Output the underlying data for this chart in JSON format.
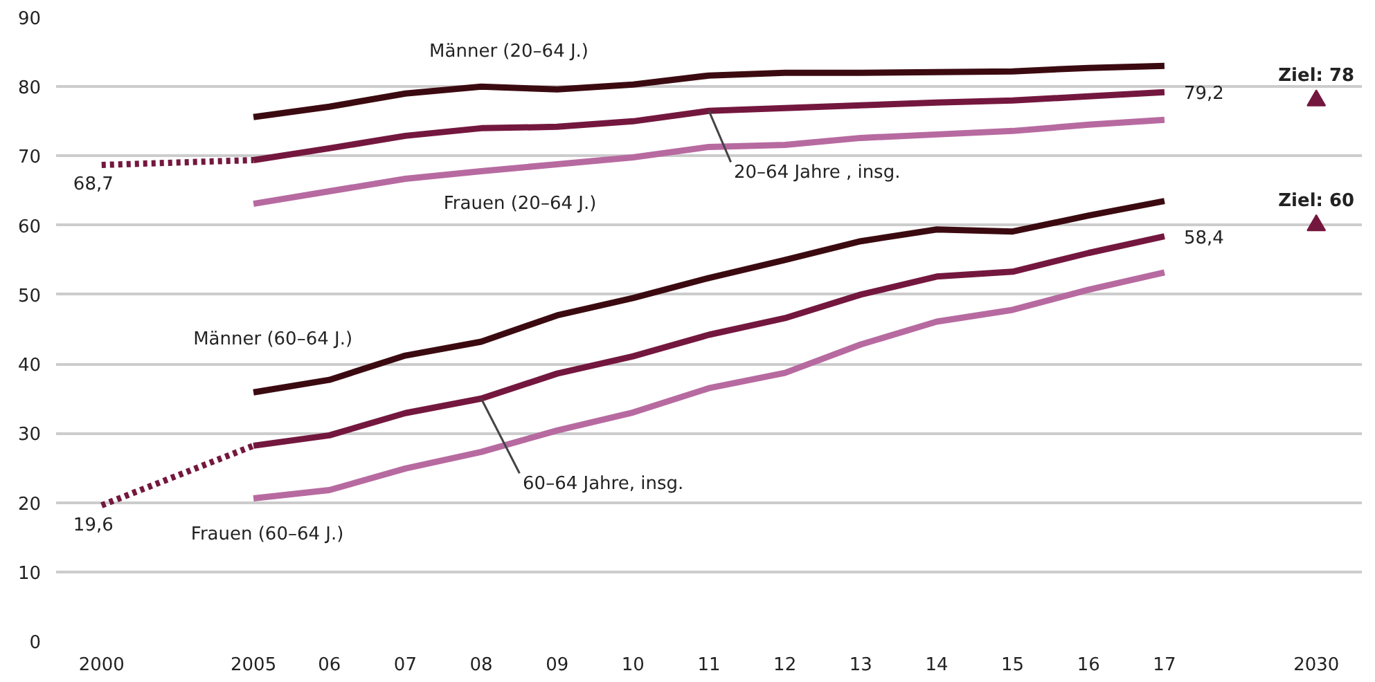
{
  "chart_data": {
    "type": "line",
    "categories": [
      "2000",
      null,
      "2005",
      "06",
      "07",
      "08",
      "09",
      "10",
      "11",
      "12",
      "13",
      "14",
      "15",
      "16",
      "17",
      null,
      "2030"
    ],
    "ylim": [
      0,
      90
    ],
    "yticks": [
      0,
      10,
      20,
      30,
      40,
      50,
      60,
      70,
      80,
      90
    ],
    "grid": "y",
    "legend": false,
    "line_style": "solid",
    "marker": "none",
    "series": [
      {
        "name": "Männer (20–64 J.)",
        "color": "#3b0a10",
        "values": [
          null,
          null,
          75.6,
          77.1,
          79.0,
          80.0,
          79.6,
          80.3,
          81.6,
          82.0,
          82.0,
          82.1,
          82.2,
          82.7,
          83.0,
          null,
          null
        ]
      },
      {
        "name": "20–64 Jahre , insg.",
        "color": "#74173e",
        "values": [
          null,
          null,
          69.4,
          71.1,
          72.9,
          74.0,
          74.2,
          75.0,
          76.5,
          76.9,
          77.3,
          77.7,
          78.0,
          78.6,
          79.2,
          null,
          null
        ],
        "value_labels": [
          null,
          null,
          null,
          null,
          null,
          null,
          null,
          null,
          null,
          null,
          null,
          null,
          null,
          null,
          "79,2",
          null,
          null
        ]
      },
      {
        "name": "Frauen (20–64 J.)",
        "color": "#b76aa0",
        "values": [
          null,
          null,
          63.1,
          64.9,
          66.7,
          67.8,
          68.8,
          69.8,
          71.3,
          71.6,
          72.6,
          73.1,
          73.6,
          74.5,
          75.2,
          null,
          null
        ]
      },
      {
        "color": "#74173e",
        "values": [
          68.7,
          null,
          69.4,
          null,
          null,
          null,
          null,
          null,
          null,
          null,
          null,
          null,
          null,
          null,
          null,
          null,
          null
        ],
        "line_style": "dotted",
        "value_labels": [
          "68,7",
          null,
          null,
          null,
          null,
          null,
          null,
          null,
          null,
          null,
          null,
          null,
          null,
          null,
          null,
          null,
          null
        ]
      },
      {
        "name": "Männer (60–64 J.)",
        "color": "#3b0a10",
        "values": [
          null,
          null,
          35.9,
          37.7,
          41.2,
          43.2,
          47.0,
          49.5,
          52.4,
          55.0,
          57.7,
          59.4,
          59.1,
          61.4,
          63.5,
          null,
          null
        ]
      },
      {
        "name": "60–64 Jahre, insg.",
        "color": "#74173e",
        "values": [
          null,
          null,
          28.2,
          29.7,
          32.9,
          35.0,
          38.6,
          41.1,
          44.2,
          46.6,
          50.0,
          52.6,
          53.3,
          56.0,
          58.4,
          null,
          null
        ],
        "value_labels": [
          null,
          null,
          null,
          null,
          null,
          null,
          null,
          null,
          null,
          null,
          null,
          null,
          null,
          null,
          "58,4",
          null,
          null
        ]
      },
      {
        "name": "Frauen (60–64 J.)",
        "color": "#b76aa0",
        "values": [
          null,
          null,
          20.6,
          21.8,
          24.9,
          27.3,
          30.4,
          33.0,
          36.5,
          38.7,
          42.8,
          46.1,
          47.8,
          50.7,
          53.2,
          null,
          null
        ]
      },
      {
        "color": "#74173e",
        "values": [
          19.6,
          null,
          28.2,
          null,
          null,
          null,
          null,
          null,
          null,
          null,
          null,
          null,
          null,
          null,
          null,
          null,
          null
        ],
        "line_style": "dotted",
        "value_labels": [
          "19,6",
          null,
          null,
          null,
          null,
          null,
          null,
          null,
          null,
          null,
          null,
          null,
          null,
          null,
          null,
          null,
          null
        ]
      },
      {
        "type": "scatter",
        "marker": "triangle",
        "color": "#74173e",
        "values": [
          null,
          null,
          null,
          null,
          null,
          null,
          null,
          null,
          null,
          null,
          null,
          null,
          null,
          null,
          null,
          null,
          78
        ],
        "value_labels": [
          null,
          null,
          null,
          null,
          null,
          null,
          null,
          null,
          null,
          null,
          null,
          null,
          null,
          null,
          null,
          null,
          "Ziel: 78"
        ]
      },
      {
        "type": "scatter",
        "marker": "triangle",
        "color": "#74173e",
        "values": [
          null,
          null,
          null,
          null,
          null,
          null,
          null,
          null,
          null,
          null,
          null,
          null,
          null,
          null,
          null,
          null,
          60
        ],
        "value_labels": [
          null,
          null,
          null,
          null,
          null,
          null,
          null,
          null,
          null,
          null,
          null,
          null,
          null,
          null,
          null,
          null,
          "Ziel: 60"
        ]
      }
    ]
  }
}
